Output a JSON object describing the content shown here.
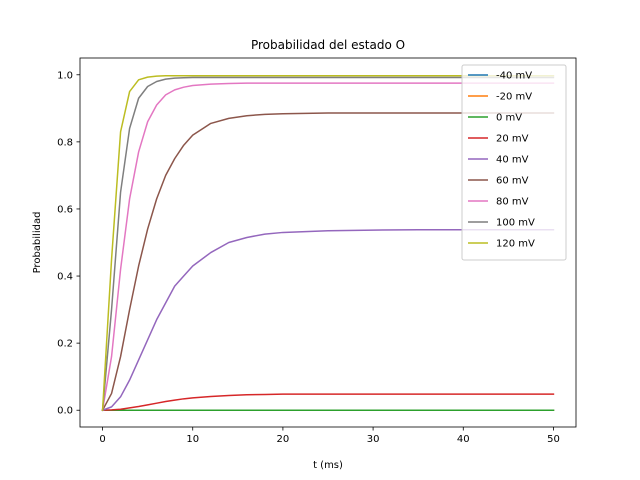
{
  "chart_data": {
    "type": "line",
    "title": "Probabilidad del estado O",
    "xlabel": "t (ms)",
    "ylabel": "Probabilidad",
    "xlim": [
      -2.5,
      52.5
    ],
    "ylim": [
      -0.05,
      1.05
    ],
    "xticks": [
      0,
      10,
      20,
      30,
      40,
      50
    ],
    "yticks": [
      0.0,
      0.2,
      0.4,
      0.6,
      0.8,
      1.0
    ],
    "xtick_labels": [
      "0",
      "10",
      "20",
      "30",
      "40",
      "50"
    ],
    "ytick_labels": [
      "0.0",
      "0.2",
      "0.4",
      "0.6",
      "0.8",
      "1.0"
    ],
    "grid": false,
    "legend_position": "top-right",
    "x": [
      0,
      1,
      2,
      3,
      4,
      5,
      6,
      7,
      8,
      9,
      10,
      12,
      14,
      16,
      18,
      20,
      25,
      30,
      35,
      40,
      45,
      50
    ],
    "series": [
      {
        "name": "-40 mV",
        "color": "#1f77b4",
        "values": [
          0,
          0,
          0,
          0,
          0,
          0,
          0,
          0,
          0,
          0,
          0,
          0,
          0,
          0,
          0,
          0,
          0,
          0,
          0,
          0,
          0,
          0
        ]
      },
      {
        "name": "-20 mV",
        "color": "#ff7f0e",
        "values": [
          0,
          0,
          0,
          0,
          0,
          0,
          0,
          0,
          0,
          0,
          0,
          0,
          0,
          0,
          0,
          0,
          0,
          0,
          0,
          0,
          0,
          0
        ]
      },
      {
        "name": "0 mV",
        "color": "#2ca02c",
        "values": [
          0,
          0,
          0,
          0,
          0,
          0,
          0,
          0,
          0,
          0,
          0,
          0,
          0,
          0,
          0,
          0,
          0,
          0,
          0,
          0,
          0,
          0
        ]
      },
      {
        "name": "20 mV",
        "color": "#d62728",
        "values": [
          0,
          0.001,
          0.003,
          0.007,
          0.011,
          0.016,
          0.021,
          0.026,
          0.03,
          0.034,
          0.037,
          0.041,
          0.044,
          0.046,
          0.047,
          0.048,
          0.048,
          0.048,
          0.048,
          0.048,
          0.048,
          0.048
        ]
      },
      {
        "name": "40 mV",
        "color": "#9467bd",
        "values": [
          0,
          0.01,
          0.04,
          0.09,
          0.15,
          0.21,
          0.27,
          0.32,
          0.37,
          0.4,
          0.43,
          0.47,
          0.5,
          0.515,
          0.525,
          0.53,
          0.535,
          0.537,
          0.538,
          0.538,
          0.538,
          0.538
        ]
      },
      {
        "name": "60 mV",
        "color": "#8c564b",
        "values": [
          0,
          0.05,
          0.16,
          0.3,
          0.43,
          0.54,
          0.63,
          0.7,
          0.75,
          0.79,
          0.82,
          0.855,
          0.87,
          0.878,
          0.882,
          0.884,
          0.886,
          0.886,
          0.886,
          0.886,
          0.886,
          0.886
        ]
      },
      {
        "name": "80 mV",
        "color": "#e377c2",
        "values": [
          0,
          0.16,
          0.42,
          0.63,
          0.77,
          0.86,
          0.91,
          0.94,
          0.955,
          0.963,
          0.968,
          0.972,
          0.974,
          0.975,
          0.975,
          0.975,
          0.975,
          0.975,
          0.975,
          0.975,
          0.975,
          0.975
        ]
      },
      {
        "name": "100 mV",
        "color": "#7f7f7f",
        "values": [
          0,
          0.3,
          0.65,
          0.84,
          0.93,
          0.965,
          0.98,
          0.987,
          0.99,
          0.991,
          0.992,
          0.992,
          0.992,
          0.992,
          0.992,
          0.992,
          0.992,
          0.992,
          0.992,
          0.992,
          0.992,
          0.992
        ]
      },
      {
        "name": "120 mV",
        "color": "#bcbd22",
        "values": [
          0,
          0.45,
          0.83,
          0.95,
          0.985,
          0.993,
          0.996,
          0.997,
          0.997,
          0.997,
          0.997,
          0.997,
          0.997,
          0.997,
          0.997,
          0.997,
          0.997,
          0.997,
          0.997,
          0.997,
          0.997,
          0.997
        ]
      }
    ]
  }
}
